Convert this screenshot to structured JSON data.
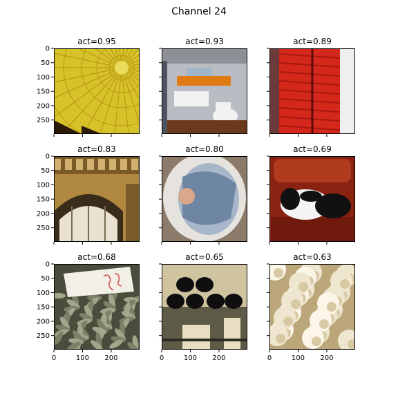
{
  "figure": {
    "title": "Channel 24"
  },
  "chart_data": {
    "type": "image_grid",
    "title": "Channel 24",
    "rows": 3,
    "cols": 3,
    "xlim": [
      0,
      299
    ],
    "ylim": [
      299,
      0
    ],
    "xticks": [
      0,
      100,
      200
    ],
    "yticks": [
      0,
      50,
      100,
      150,
      200,
      250
    ],
    "panels": [
      {
        "title": "act=0.95",
        "act": 0.95,
        "subject": "yellow hot-air balloon canopy",
        "palette": [
          "#d8c22a",
          "#b89a12",
          "#e9dc5a",
          "#2b1a0a"
        ]
      },
      {
        "title": "act=0.93",
        "act": 0.93,
        "subject": "bathroom with sink and toilet",
        "palette": [
          "#b9bcc2",
          "#e07a12",
          "#f2f2f2",
          "#6b3a1d"
        ]
      },
      {
        "title": "act=0.89",
        "act": 0.89,
        "subject": "red quilted puffer jacket",
        "palette": [
          "#d5281c",
          "#a61810",
          "#8a8f96",
          "#f0efef"
        ]
      },
      {
        "title": "act=0.83",
        "act": 0.83,
        "subject": "ornate stone archway",
        "palette": [
          "#b08840",
          "#7a5a28",
          "#d2b070",
          "#3a2c1a"
        ]
      },
      {
        "title": "act=0.80",
        "act": 0.8,
        "subject": "baby wrapped in blue blanket",
        "palette": [
          "#a7b6c9",
          "#6f86a3",
          "#e6e3df",
          "#8c7b6a"
        ]
      },
      {
        "title": "act=0.69",
        "act": 0.69,
        "subject": "black and white dog on red leather couch",
        "palette": [
          "#8a2212",
          "#b03a1e",
          "#111111",
          "#f4f4f4"
        ]
      },
      {
        "title": "act=0.68",
        "act": 0.68,
        "subject": "pile of dried sea cucumbers with price sign",
        "palette": [
          "#7c8066",
          "#4a4d3c",
          "#f2efe6",
          "#d04a4a"
        ]
      },
      {
        "title": "act=0.65",
        "act": 0.65,
        "subject": "black caps on plaid blanket",
        "palette": [
          "#cfc3a0",
          "#5e5a48",
          "#0f0f10",
          "#e8dfc2"
        ]
      },
      {
        "title": "act=0.63",
        "act": 0.63,
        "subject": "cauliflower florets",
        "palette": [
          "#efe6cf",
          "#d8c9a4",
          "#bca77a",
          "#fbf6e8"
        ]
      }
    ]
  }
}
